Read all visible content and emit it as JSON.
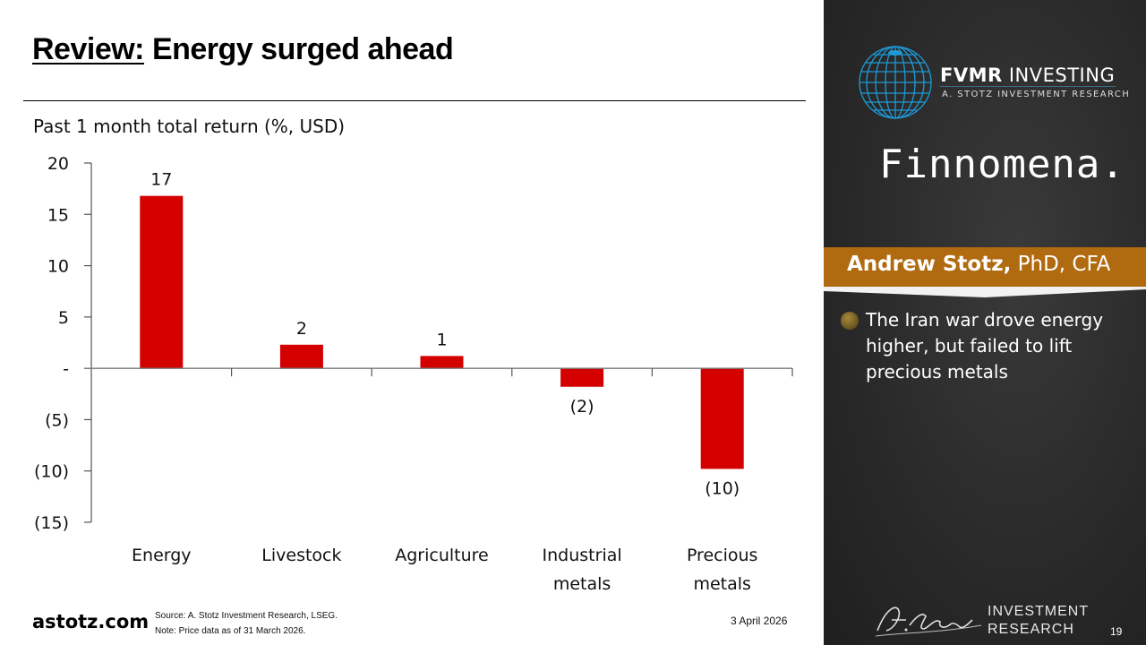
{
  "slide": {
    "title_lead": "Review:",
    "title_rest": " Energy surged ahead",
    "subtitle": "Past 1 month total return (%, USD)",
    "website": "astotz.com",
    "source": "Source: A. Stotz Investment Research, LSEG.",
    "note": "Note: Price data as of 31 March 2026.",
    "date": "3 April 2026",
    "page_number": "19"
  },
  "sidebar": {
    "brand_name_bold": "FVMR",
    "brand_name_rest": " INVESTING",
    "brand_tagline": "A. STOTZ INVESTMENT RESEARCH",
    "partner_logo": "Finnomena.",
    "presenter_name": "Andrew Stotz,",
    "presenter_credentials": " PhD, CFA",
    "bullet": "The Iran war drove energy higher, but failed to lift precious metals",
    "footer_logo_script": "A. Stotz",
    "footer_logo_line1": "INVESTMENT",
    "footer_logo_line2": "RESEARCH",
    "colors": {
      "accent": "#b06a10",
      "globe": "#1e9ad6",
      "bar": "#d40000"
    }
  },
  "chart_data": {
    "type": "bar",
    "title": "Past 1 month total return (%, USD)",
    "xlabel": "",
    "ylabel": "",
    "categories": [
      "Energy",
      "Livestock",
      "Agriculture",
      "Industrial metals",
      "Precious metals"
    ],
    "category_lines": [
      [
        "Energy"
      ],
      [
        "Livestock"
      ],
      [
        "Agriculture"
      ],
      [
        "Industrial",
        "metals"
      ],
      [
        "Precious",
        "metals"
      ]
    ],
    "values": [
      16.8,
      2.3,
      1.2,
      -1.8,
      -9.8
    ],
    "data_labels": [
      "17",
      "2",
      "1",
      "(2)",
      "(10)"
    ],
    "ylim": [
      -15,
      20
    ],
    "yticks": [
      20,
      15,
      10,
      5,
      0,
      -5,
      -10,
      -15
    ],
    "ytick_labels": [
      "20",
      "15",
      "10",
      "5",
      "-",
      "(5)",
      "(10)",
      "(15)"
    ],
    "grid": false,
    "legend": "none",
    "bar_color": "#d40000"
  }
}
